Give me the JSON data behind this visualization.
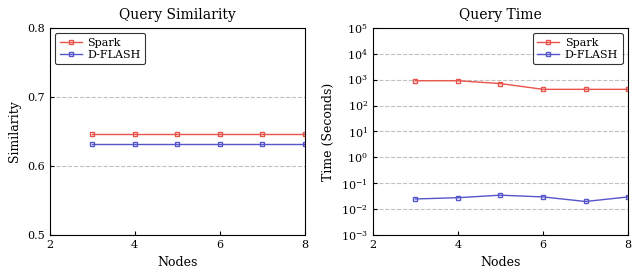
{
  "nodes": [
    3,
    4,
    5,
    6,
    7,
    8
  ],
  "sim_spark": [
    0.646,
    0.646,
    0.646,
    0.646,
    0.646,
    0.646
  ],
  "sim_dflash": [
    0.632,
    0.632,
    0.632,
    0.632,
    0.632,
    0.632
  ],
  "time_spark": [
    900,
    900,
    700,
    420,
    420,
    420
  ],
  "time_dflash": [
    0.025,
    0.028,
    0.035,
    0.03,
    0.02,
    0.03
  ],
  "color_spark": "#e8534a",
  "color_dflash": "#5555cc",
  "title_sim": "Query Similarity",
  "title_time": "Query Time",
  "xlabel": "Nodes",
  "ylabel_sim": "Similarity",
  "ylabel_time": "Time (Seconds)",
  "ylim_sim": [
    0.5,
    0.8
  ],
  "yticks_sim": [
    0.5,
    0.6,
    0.7,
    0.8
  ],
  "xlim": [
    2,
    8
  ],
  "xticks": [
    2,
    4,
    6,
    8
  ],
  "legend_spark": "Spark",
  "legend_dflash": "D-FLASH"
}
